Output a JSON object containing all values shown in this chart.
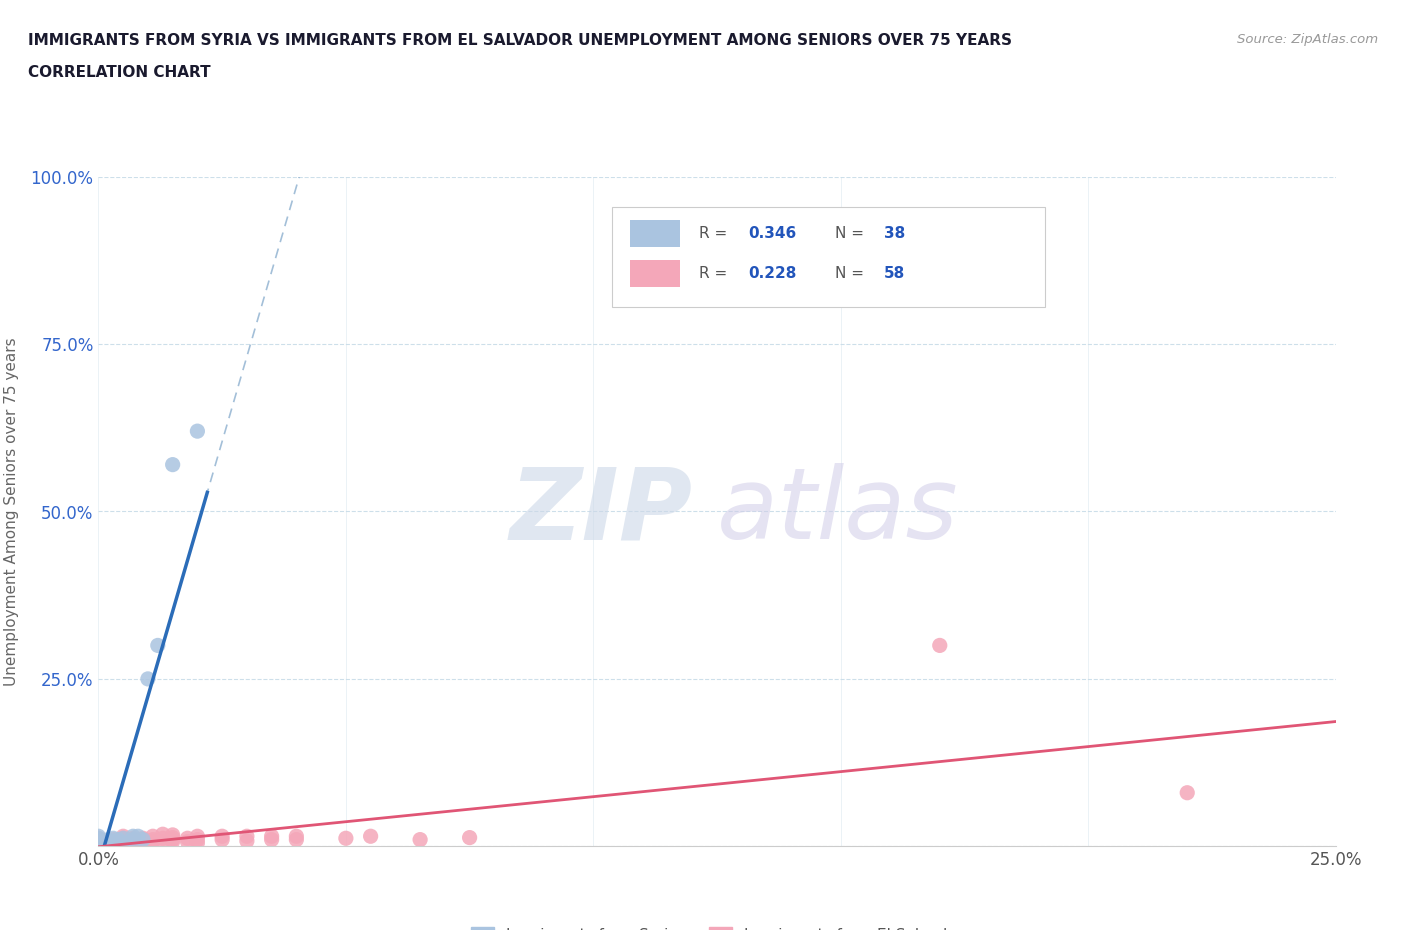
{
  "title_line1": "IMMIGRANTS FROM SYRIA VS IMMIGRANTS FROM EL SALVADOR UNEMPLOYMENT AMONG SENIORS OVER 75 YEARS",
  "title_line2": "CORRELATION CHART",
  "source": "Source: ZipAtlas.com",
  "ylabel": "Unemployment Among Seniors over 75 years",
  "xlim": [
    0.0,
    0.25
  ],
  "ylim": [
    0.0,
    1.0
  ],
  "xtick_vals": [
    0.0,
    0.05,
    0.1,
    0.15,
    0.2,
    0.25
  ],
  "ytick_vals": [
    0.0,
    0.25,
    0.5,
    0.75,
    1.0
  ],
  "xticklabels": [
    "0.0%",
    "",
    "",
    "",
    "",
    "25.0%"
  ],
  "yticklabels": [
    "",
    "25.0%",
    "50.0%",
    "75.0%",
    "100.0%"
  ],
  "legend_entries": [
    {
      "label": "Immigrants from Syria",
      "R": "0.346",
      "N": "38",
      "color": "#aac4e0"
    },
    {
      "label": "Immigrants from El Salvador",
      "R": "0.228",
      "N": "58",
      "color": "#f4a7b9"
    }
  ],
  "syria_x": [
    0.0,
    0.0,
    0.0,
    0.0,
    0.0,
    0.0,
    0.0,
    0.0,
    0.0,
    0.0,
    0.0,
    0.0,
    0.0,
    0.0,
    0.0,
    0.0,
    0.0,
    0.0,
    0.0,
    0.0,
    0.002,
    0.002,
    0.002,
    0.003,
    0.003,
    0.003,
    0.004,
    0.004,
    0.005,
    0.005,
    0.007,
    0.007,
    0.008,
    0.009,
    0.01,
    0.012,
    0.015,
    0.02
  ],
  "syria_y": [
    0.0,
    0.0,
    0.0,
    0.0,
    0.0,
    0.0,
    0.0,
    0.0,
    0.0,
    0.0,
    0.003,
    0.003,
    0.005,
    0.005,
    0.007,
    0.007,
    0.01,
    0.01,
    0.012,
    0.015,
    0.003,
    0.005,
    0.01,
    0.003,
    0.007,
    0.012,
    0.007,
    0.01,
    0.005,
    0.012,
    0.01,
    0.015,
    0.015,
    0.01,
    0.25,
    0.3,
    0.57,
    0.62
  ],
  "salvador_x": [
    0.0,
    0.0,
    0.0,
    0.0,
    0.0,
    0.0,
    0.0,
    0.0,
    0.0,
    0.0,
    0.002,
    0.002,
    0.003,
    0.003,
    0.003,
    0.004,
    0.005,
    0.005,
    0.005,
    0.005,
    0.005,
    0.005,
    0.007,
    0.007,
    0.007,
    0.007,
    0.009,
    0.009,
    0.009,
    0.011,
    0.011,
    0.011,
    0.013,
    0.013,
    0.013,
    0.015,
    0.015,
    0.015,
    0.015,
    0.018,
    0.018,
    0.02,
    0.02,
    0.02,
    0.025,
    0.025,
    0.03,
    0.03,
    0.035,
    0.035,
    0.04,
    0.04,
    0.05,
    0.055,
    0.065,
    0.075,
    0.17,
    0.22
  ],
  "salvador_y": [
    0.0,
    0.0,
    0.0,
    0.0,
    0.0,
    0.0,
    0.005,
    0.007,
    0.01,
    0.012,
    0.003,
    0.007,
    0.003,
    0.005,
    0.01,
    0.008,
    0.003,
    0.005,
    0.007,
    0.01,
    0.012,
    0.015,
    0.005,
    0.007,
    0.01,
    0.012,
    0.005,
    0.01,
    0.012,
    0.007,
    0.01,
    0.015,
    0.007,
    0.012,
    0.018,
    0.007,
    0.01,
    0.013,
    0.017,
    0.007,
    0.012,
    0.005,
    0.01,
    0.015,
    0.01,
    0.015,
    0.008,
    0.015,
    0.01,
    0.015,
    0.01,
    0.015,
    0.012,
    0.015,
    0.01,
    0.013,
    0.3,
    0.08
  ],
  "syria_line_color": "#2b6cb8",
  "salvador_line_color": "#e05575",
  "syria_dot_color": "#aac4e0",
  "salvador_dot_color": "#f4a7b9",
  "dash_line_color": "#99b8d4",
  "grid_color": "#c8dce8",
  "background_color": "#ffffff",
  "title_color": "#1a1a2e",
  "legend_text_color": "#2255bb",
  "watermark_zip_color": "#ccd8e8",
  "watermark_atlas_color": "#d0cce8"
}
